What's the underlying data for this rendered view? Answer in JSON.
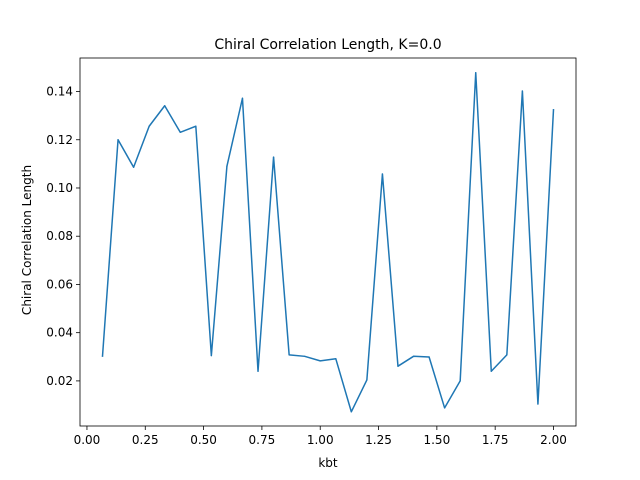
{
  "chart_data": {
    "type": "line",
    "title": "Chiral Correlation Length, K=0.0",
    "xlabel": "kbt",
    "ylabel": "Chiral Correlation Length",
    "xlim": [
      -0.0298,
      2.0965
    ],
    "ylim": [
      0.0013,
      0.1539
    ],
    "xticks": [
      0.0,
      0.25,
      0.5,
      0.75,
      1.0,
      1.25,
      1.5,
      1.75,
      2.0
    ],
    "xtick_labels": [
      "0.00",
      "0.25",
      "0.50",
      "0.75",
      "1.00",
      "1.25",
      "1.50",
      "1.75",
      "2.00"
    ],
    "yticks": [
      0.02,
      0.04,
      0.06,
      0.08,
      0.1,
      0.12,
      0.14
    ],
    "ytick_labels": [
      "0.02",
      "0.04",
      "0.06",
      "0.08",
      "0.10",
      "0.12",
      "0.14"
    ],
    "grid": false,
    "series": [
      {
        "color": "#1f77b4",
        "x": [
          0.0667,
          0.1333,
          0.2,
          0.2667,
          0.3333,
          0.4,
          0.4667,
          0.5333,
          0.6,
          0.6667,
          0.7333,
          0.8,
          0.8667,
          0.9333,
          1.0,
          1.0667,
          1.1333,
          1.2,
          1.2667,
          1.3333,
          1.4,
          1.4667,
          1.5333,
          1.6,
          1.6667,
          1.7333,
          1.8,
          1.8667,
          1.9333,
          2.0
        ],
        "y": [
          0.0303,
          0.12,
          0.1086,
          0.1256,
          0.1341,
          0.1231,
          0.1256,
          0.0305,
          0.109,
          0.1372,
          0.024,
          0.1128,
          0.0308,
          0.0302,
          0.0283,
          0.0292,
          0.0072,
          0.0204,
          0.1058,
          0.0261,
          0.0302,
          0.0299,
          0.0088,
          0.02,
          0.1478,
          0.024,
          0.0308,
          0.1402,
          0.0104,
          0.1324
        ]
      }
    ]
  }
}
